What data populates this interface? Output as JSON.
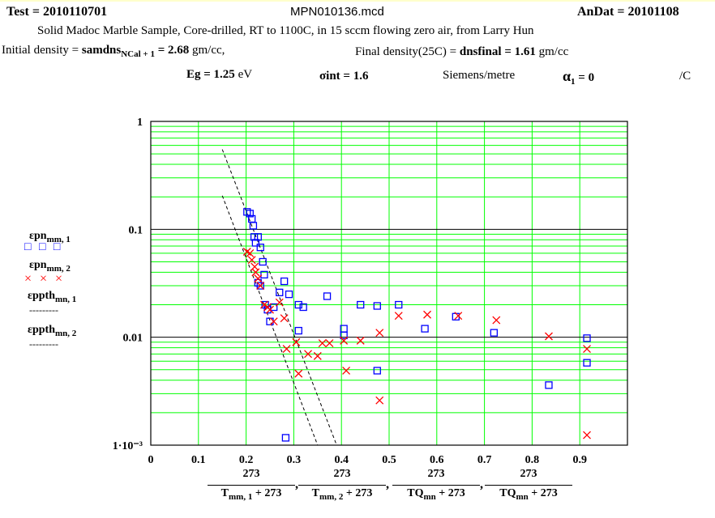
{
  "header": {
    "test_label": "Test = 2010110701",
    "file_name": "MPN010136.mcd",
    "andat_label": "AnDat = 20101108",
    "description": "Solid Madoc Marble Sample, Core-drilled, RT to 1100C, in 15 sccm flowing zero air, from Larry Hun",
    "initial_density_prefix": "Initial density = ",
    "initial_density_var": "samdns",
    "initial_density_sub": "NCal + 1",
    "initial_density_value": " = 2.68",
    "initial_density_unit": " gm/cc,",
    "final_density_prefix": "Final density(25C) = ",
    "final_density_value": "dnsfinal = 1.61",
    "final_density_unit": " gm/cc",
    "eg_label": "Eg = 1.25",
    "eg_unit": " eV",
    "sigma_label": "σint = 1.6",
    "siemens_unit": "Siemens/metre",
    "alpha_label": "α",
    "alpha_sub": "1",
    "alpha_value": " = 0",
    "alpha_unit": "/C"
  },
  "legend": {
    "entries": [
      {
        "name": "εpn",
        "sub": "mm, 1",
        "symbol": "□ □ □"
      },
      {
        "name": "εpn",
        "sub": "mm, 2",
        "symbol": "× × ×"
      },
      {
        "name": "εppth",
        "sub": "mn, 1",
        "symbol": "---------"
      },
      {
        "name": "εppth",
        "sub": "mn, 2",
        "symbol": "---------"
      }
    ]
  },
  "xaxis_label": {
    "num": "273",
    "terms": [
      {
        "T": "T",
        "sub": "mm, 1"
      },
      {
        "T": "T",
        "sub": "mm, 2"
      },
      {
        "T": "TQ",
        "sub": "mn"
      },
      {
        "T": "TQ",
        "sub": "mn"
      }
    ],
    "plus": " + 273",
    "sep": ","
  },
  "colors": {
    "grid_major": "#000000",
    "grid_minor": "#00ff00",
    "series1": "#0000ff",
    "series2": "#ff0000",
    "theory": "#000000"
  },
  "chart_data": {
    "type": "scatter",
    "x_range": [
      0,
      1
    ],
    "y_range": [
      0.001,
      1
    ],
    "y_scale": "log",
    "grid": true,
    "x_ticks": [
      "0",
      "0.1",
      "0.2",
      "0.3",
      "0.4",
      "0.5",
      "0.6",
      "0.7",
      "0.8",
      "0.9"
    ],
    "x_tick_values": [
      0,
      0.1,
      0.2,
      0.3,
      0.4,
      0.5,
      0.6,
      0.7,
      0.8,
      0.9
    ],
    "y_ticks": [
      "1",
      "0.1",
      "0.01",
      "1·10⁻³"
    ],
    "y_tick_values": [
      1,
      0.1,
      0.01,
      0.001
    ],
    "series": [
      {
        "name": "εpn mm,1",
        "marker": "square",
        "color": "#0000ff",
        "points": [
          [
            0.202,
            0.145
          ],
          [
            0.208,
            0.14
          ],
          [
            0.212,
            0.125
          ],
          [
            0.215,
            0.108
          ],
          [
            0.217,
            0.085
          ],
          [
            0.22,
            0.075
          ],
          [
            0.225,
            0.085
          ],
          [
            0.23,
            0.068
          ],
          [
            0.235,
            0.05
          ],
          [
            0.238,
            0.038
          ],
          [
            0.225,
            0.032
          ],
          [
            0.23,
            0.03
          ],
          [
            0.24,
            0.02
          ],
          [
            0.245,
            0.018
          ],
          [
            0.25,
            0.014
          ],
          [
            0.258,
            0.019
          ],
          [
            0.27,
            0.026
          ],
          [
            0.28,
            0.033
          ],
          [
            0.29,
            0.025
          ],
          [
            0.31,
            0.02
          ],
          [
            0.32,
            0.019
          ],
          [
            0.31,
            0.0115
          ],
          [
            0.37,
            0.024
          ],
          [
            0.405,
            0.012
          ],
          [
            0.405,
            0.0104
          ],
          [
            0.44,
            0.02
          ],
          [
            0.475,
            0.0195
          ],
          [
            0.475,
            0.0049
          ],
          [
            0.52,
            0.02
          ],
          [
            0.575,
            0.012
          ],
          [
            0.64,
            0.0155
          ],
          [
            0.72,
            0.011
          ],
          [
            0.835,
            0.0036
          ],
          [
            0.915,
            0.0098
          ],
          [
            0.915,
            0.0058
          ],
          [
            0.283,
            0.00117
          ]
        ]
      },
      {
        "name": "εpn mm,2",
        "marker": "x",
        "color": "#ff0000",
        "points": [
          [
            0.202,
            0.062
          ],
          [
            0.208,
            0.06
          ],
          [
            0.212,
            0.052
          ],
          [
            0.218,
            0.045
          ],
          [
            0.22,
            0.04
          ],
          [
            0.225,
            0.035
          ],
          [
            0.23,
            0.03
          ],
          [
            0.238,
            0.02
          ],
          [
            0.245,
            0.019
          ],
          [
            0.25,
            0.018
          ],
          [
            0.258,
            0.014
          ],
          [
            0.27,
            0.021
          ],
          [
            0.28,
            0.015
          ],
          [
            0.285,
            0.0078
          ],
          [
            0.305,
            0.009
          ],
          [
            0.31,
            0.0046
          ],
          [
            0.33,
            0.007
          ],
          [
            0.35,
            0.0067
          ],
          [
            0.36,
            0.0088
          ],
          [
            0.375,
            0.0088
          ],
          [
            0.405,
            0.0093
          ],
          [
            0.41,
            0.0049
          ],
          [
            0.44,
            0.0093
          ],
          [
            0.48,
            0.011
          ],
          [
            0.48,
            0.0026
          ],
          [
            0.52,
            0.0158
          ],
          [
            0.58,
            0.0162
          ],
          [
            0.645,
            0.0158
          ],
          [
            0.725,
            0.0144
          ],
          [
            0.835,
            0.0102
          ],
          [
            0.915,
            0.0078
          ],
          [
            0.915,
            0.00124
          ]
        ]
      }
    ],
    "theory_lines": [
      {
        "name": "εppth mn,1",
        "points": [
          [
            0.15,
            0.55
          ],
          [
            0.39,
            0.001
          ]
        ]
      },
      {
        "name": "εppth mn,2",
        "points": [
          [
            0.15,
            0.205
          ],
          [
            0.35,
            0.001
          ]
        ]
      }
    ]
  }
}
